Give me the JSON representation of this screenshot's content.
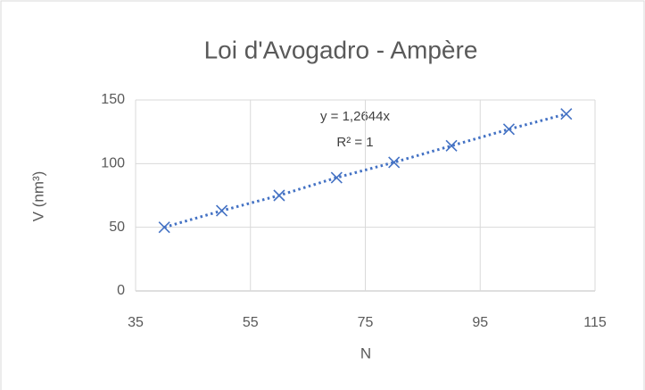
{
  "chart_data": {
    "type": "scatter",
    "title": "Loi d'Avogadro - Ampère",
    "xlabel": "N",
    "ylabel": "V (nm³)",
    "annotations": [
      "y = 1,2644x",
      "R² = 1"
    ],
    "series": [
      {
        "name": "V",
        "color": "#4472c4",
        "x": [
          40,
          50,
          60,
          70,
          80,
          90,
          100,
          110
        ],
        "values": [
          50,
          63,
          75,
          89,
          101,
          114,
          127,
          139
        ]
      }
    ],
    "xlim": [
      35,
      115
    ],
    "xticks": [
      35,
      55,
      75,
      95,
      115
    ],
    "ylim": [
      0,
      150
    ],
    "yticks": [
      0,
      50,
      100,
      150
    ],
    "grid": true,
    "trendline": "dotted"
  }
}
